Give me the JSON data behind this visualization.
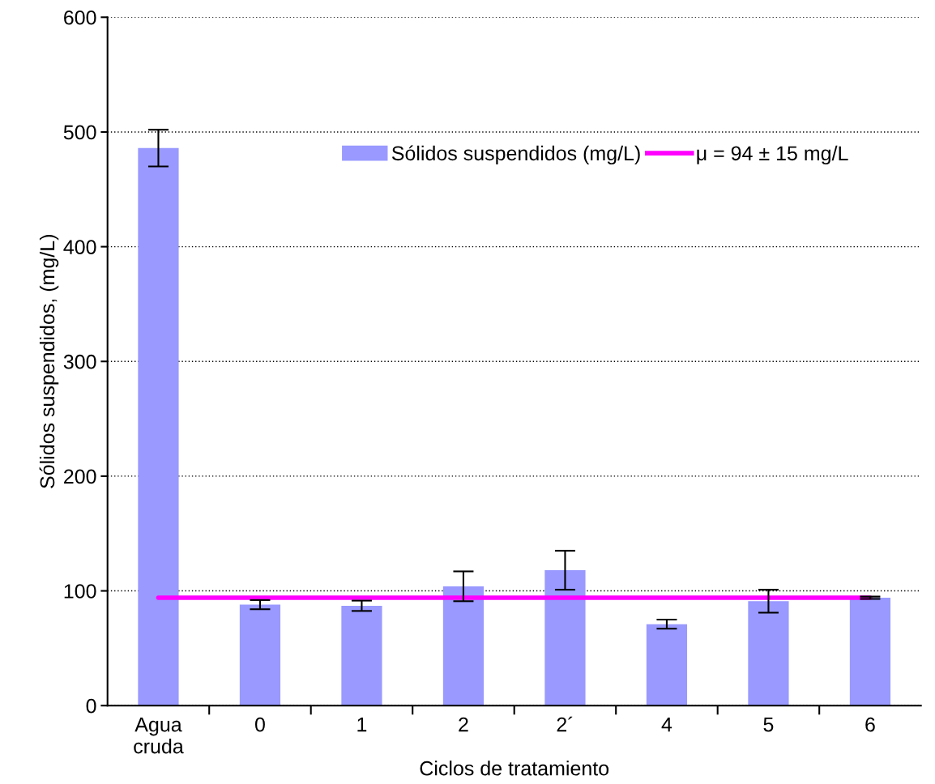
{
  "chart_data": {
    "type": "bar",
    "xlabel": "Ciclos de tratamiento",
    "ylabel": "Sólidos suspendidos, (mg/L)",
    "categories": [
      "Agua\ncruda",
      "0",
      "1",
      "2",
      "2´",
      "4",
      "5",
      "6"
    ],
    "series": [
      {
        "name": "Sólidos suspendidos (mg/L)",
        "color": "#9999ff",
        "values": [
          486,
          88,
          87,
          104,
          118,
          71,
          91,
          94
        ],
        "errors": [
          16,
          4,
          4.5,
          13,
          17,
          4,
          10,
          1
        ]
      }
    ],
    "ref_lines": [
      {
        "axis": "y",
        "value": 94,
        "label": "μ = 94 ± 15 mg/L",
        "color": "#ff00ff",
        "line_style": "solid"
      }
    ],
    "ylim": [
      0,
      600
    ],
    "yticks": [
      0,
      100,
      200,
      300,
      400,
      500,
      600
    ],
    "grid": "y",
    "legend": "top"
  }
}
